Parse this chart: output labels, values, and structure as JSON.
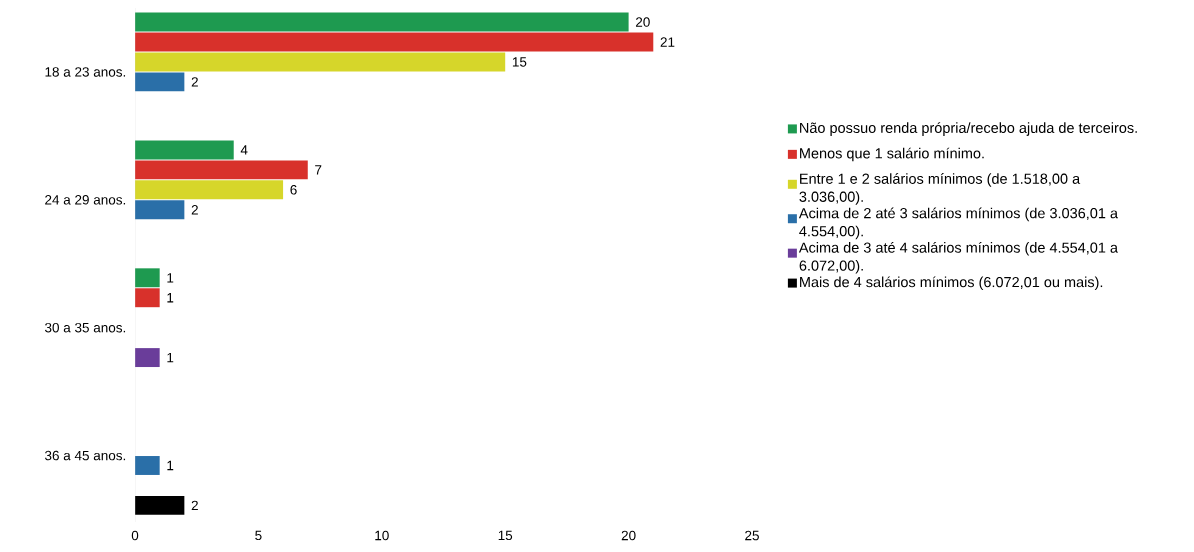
{
  "chart_data": {
    "type": "bar",
    "orientation": "horizontal",
    "categories": [
      "18 a 23 anos.",
      "24 a 29 anos.",
      "30 a 35 anos.",
      "36 a 45 anos."
    ],
    "series": [
      {
        "name": "Não possuo renda própria/recebo ajuda de terceiros.",
        "color": "#1e9a50",
        "values": [
          20,
          4,
          1,
          null
        ]
      },
      {
        "name": "Menos que 1 salário mínimo.",
        "color": "#d8312b",
        "values": [
          21,
          7,
          1,
          null
        ]
      },
      {
        "name": "Entre 1 e 2 salários mínimos (de 1.518,00 a 3.036,00).",
        "color": "#d6d62a",
        "values": [
          15,
          6,
          null,
          null
        ]
      },
      {
        "name": "Acima de 2 até 3 salários mínimos (de 3.036,01 a 4.554,00).",
        "color": "#2a6fa8",
        "values": [
          2,
          2,
          null,
          1
        ]
      },
      {
        "name": "Acima de 3 até 4 salários mínimos (de 4.554,01 a 6.072,00).",
        "color": "#6a3d9a",
        "values": [
          null,
          null,
          1,
          null
        ]
      },
      {
        "name": "Mais de 4 salários mínimos (6.072,01 ou mais).",
        "color": "#000000",
        "values": [
          null,
          null,
          null,
          2
        ]
      }
    ],
    "xlim": [
      0,
      25
    ],
    "xticks": [
      0,
      5,
      10,
      15,
      20,
      25
    ],
    "data_labels": true,
    "grid": false,
    "legend": "right"
  }
}
